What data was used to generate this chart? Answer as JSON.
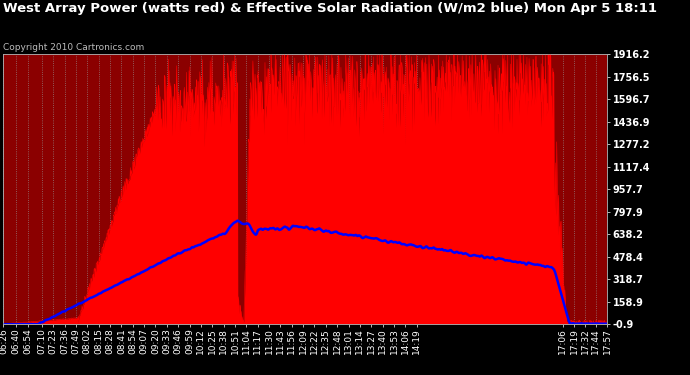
{
  "title": "West Array Power (watts red) & Effective Solar Radiation (W/m2 blue) Mon Apr 5 18:11",
  "copyright": "Copyright 2010 Cartronics.com",
  "y_ticks": [
    -0.9,
    158.9,
    318.7,
    478.4,
    638.2,
    797.9,
    957.7,
    1117.4,
    1277.2,
    1436.9,
    1596.7,
    1756.5,
    1916.2
  ],
  "ylim": [
    -0.9,
    1916.2
  ],
  "x_labels": [
    "06:26",
    "06:40",
    "06:54",
    "07:10",
    "07:23",
    "07:36",
    "07:49",
    "08:02",
    "08:15",
    "08:28",
    "08:41",
    "08:54",
    "09:07",
    "09:20",
    "09:33",
    "09:46",
    "09:59",
    "10:12",
    "10:25",
    "10:38",
    "10:51",
    "11:04",
    "11:17",
    "11:30",
    "11:43",
    "11:56",
    "12:09",
    "12:22",
    "12:35",
    "12:48",
    "13:01",
    "13:14",
    "13:27",
    "13:40",
    "13:53",
    "14:06",
    "14:19",
    "17:06",
    "17:19",
    "17:32",
    "17:44",
    "17:57"
  ],
  "figsize": [
    6.9,
    3.75
  ],
  "dpi": 100
}
